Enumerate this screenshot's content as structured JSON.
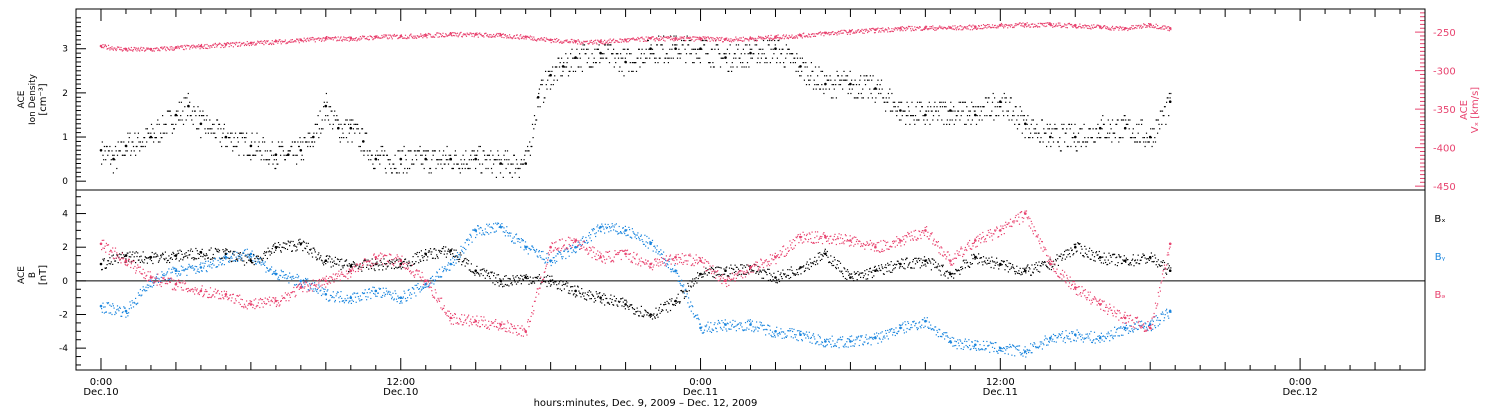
{
  "chart_data": [
    {
      "type": "scatter",
      "ylabel_lines": [
        "ACE",
        "Ion Density",
        "[cm⁻³]"
      ],
      "ylim": [
        -0.2,
        3.9
      ],
      "yticks": [
        0,
        1,
        2,
        3
      ],
      "right_axis": {
        "label_lines": [
          "ACE",
          "Vₓ [km/s]"
        ],
        "ylim": [
          -455,
          -220
        ],
        "ticks": [
          -450,
          -400,
          -350,
          -300,
          -250
        ],
        "color": "#e8436f"
      },
      "series": [
        {
          "color": "#000000",
          "x": [
            0,
            0.5,
            1,
            2,
            3,
            3.5,
            4,
            5,
            6,
            7,
            7.5,
            8,
            8.5,
            9,
            9.5,
            10,
            10.5,
            11,
            12,
            13,
            14,
            15,
            16,
            17,
            17.5,
            18,
            18.5,
            19,
            20,
            21,
            22,
            23,
            24,
            25,
            26,
            27,
            28,
            29,
            30,
            31,
            32,
            33,
            34,
            35,
            36,
            37,
            38,
            39,
            40,
            41,
            42,
            42.8
          ],
          "y": [
            0.7,
            0.5,
            0.8,
            1.0,
            1.5,
            1.7,
            1.3,
            1.0,
            0.8,
            0.6,
            0.6,
            0.7,
            1.0,
            1.7,
            1.2,
            1.2,
            0.9,
            0.5,
            0.5,
            0.5,
            0.5,
            0.5,
            0.4,
            0.4,
            1.9,
            2.4,
            2.6,
            2.8,
            2.9,
            2.7,
            3.0,
            3.0,
            3.0,
            2.8,
            2.9,
            3.0,
            2.6,
            2.2,
            2.2,
            2.1,
            1.6,
            1.5,
            1.6,
            1.5,
            1.8,
            1.3,
            1.0,
            1.0,
            1.2,
            1.2,
            1.0,
            1.8
          ]
        },
        {
          "axis": "right",
          "color": "#e8436f",
          "x": [
            0,
            1,
            2,
            3,
            4,
            5,
            6,
            7,
            8,
            9,
            10,
            11,
            12,
            13,
            14,
            15,
            16,
            17,
            18,
            19,
            20,
            21,
            22,
            23,
            24,
            25,
            26,
            27,
            28,
            29,
            30,
            31,
            32,
            33,
            34,
            35,
            36,
            37,
            38,
            39,
            40,
            41,
            42,
            42.8
          ],
          "y": [
            -268,
            -272,
            -272,
            -270,
            -268,
            -266,
            -264,
            -262,
            -260,
            -258,
            -258,
            -256,
            -255,
            -254,
            -252,
            -253,
            -254,
            -256,
            -260,
            -262,
            -262,
            -260,
            -258,
            -258,
            -258,
            -259,
            -258,
            -256,
            -254,
            -251,
            -249,
            -247,
            -245,
            -244,
            -244,
            -243,
            -241,
            -240,
            -240,
            -241,
            -243,
            -245,
            -240,
            -245
          ]
        }
      ]
    },
    {
      "type": "scatter",
      "ylabel_lines": [
        "ACE",
        "B",
        "[nT]"
      ],
      "ylim": [
        -5.3,
        5.4
      ],
      "yticks": [
        -4,
        -2,
        0,
        2,
        4
      ],
      "series": [
        {
          "name": "Bₓ",
          "color": "#000000",
          "x": [
            0,
            1,
            2,
            3,
            4,
            5,
            6,
            7,
            8,
            9,
            10,
            11,
            12,
            13,
            14,
            15,
            16,
            17,
            18,
            19,
            20,
            21,
            22,
            23,
            24,
            25,
            26,
            27,
            28,
            29,
            30,
            31,
            32,
            33,
            34,
            35,
            36,
            37,
            38,
            39,
            40,
            41,
            42,
            42.8
          ],
          "y": [
            1.0,
            1.5,
            1.4,
            1.5,
            1.7,
            1.6,
            1.2,
            2.0,
            2.2,
            1.2,
            0.9,
            1.0,
            1.0,
            1.6,
            1.8,
            0.6,
            0.0,
            0.2,
            0.0,
            -0.6,
            -1.0,
            -1.4,
            -2.0,
            -1.2,
            0.4,
            0.6,
            0.8,
            0.2,
            0.8,
            1.6,
            0.2,
            0.6,
            1.0,
            1.2,
            0.4,
            1.4,
            1.0,
            0.6,
            1.0,
            2.0,
            1.4,
            1.2,
            1.4,
            0.6
          ]
        },
        {
          "name": "Bᵧ",
          "color": "#1a85de",
          "x": [
            0,
            1,
            2,
            3,
            4,
            5,
            6,
            7,
            8,
            9,
            10,
            11,
            12,
            13,
            14,
            15,
            16,
            17,
            18,
            19,
            20,
            21,
            22,
            23,
            24,
            25,
            26,
            27,
            28,
            29,
            30,
            31,
            32,
            33,
            34,
            35,
            36,
            37,
            38,
            39,
            40,
            41,
            42,
            42.8
          ],
          "y": [
            -1.5,
            -1.8,
            0.0,
            0.6,
            0.8,
            1.4,
            1.6,
            0.4,
            0.0,
            -0.8,
            -1.0,
            -0.6,
            -1.0,
            -0.2,
            1.0,
            3.0,
            3.2,
            2.0,
            1.2,
            2.0,
            3.2,
            3.0,
            2.2,
            0.6,
            -2.8,
            -2.6,
            -2.6,
            -3.0,
            -3.2,
            -3.6,
            -3.6,
            -3.4,
            -2.8,
            -2.4,
            -3.6,
            -3.8,
            -4.0,
            -4.2,
            -3.4,
            -3.2,
            -3.4,
            -2.8,
            -2.6,
            -1.8
          ]
        },
        {
          "name": "Bₔ",
          "color": "#e8436f",
          "x": [
            0,
            1,
            2,
            3,
            4,
            5,
            6,
            7,
            8,
            9,
            10,
            11,
            12,
            13,
            14,
            15,
            16,
            17,
            18,
            19,
            20,
            21,
            22,
            23,
            24,
            25,
            26,
            27,
            28,
            29,
            30,
            31,
            32,
            33,
            34,
            35,
            36,
            37,
            38,
            39,
            40,
            41,
            42,
            42.8
          ],
          "y": [
            2.2,
            1.2,
            0.2,
            -0.2,
            -0.6,
            -0.8,
            -1.4,
            -1.2,
            -0.4,
            0.0,
            0.6,
            1.4,
            1.2,
            0.0,
            -2.2,
            -2.4,
            -2.6,
            -3.0,
            2.0,
            2.4,
            1.4,
            1.6,
            1.0,
            1.4,
            1.2,
            0.0,
            0.8,
            1.4,
            2.6,
            2.6,
            2.4,
            2.0,
            2.4,
            3.0,
            1.2,
            2.4,
            3.0,
            4.0,
            1.0,
            -0.4,
            -1.4,
            -2.2,
            -2.8,
            2.2
          ]
        }
      ]
    }
  ],
  "x_axis": {
    "xlim": [
      -1,
      53
    ],
    "ticks": [
      {
        "x": 0,
        "label": "0:00",
        "sublabel": "Dec.10"
      },
      {
        "x": 12,
        "label": "12:00",
        "sublabel": "Dec.10"
      },
      {
        "x": 24,
        "label": "0:00",
        "sublabel": "Dec.11"
      },
      {
        "x": 36,
        "label": "12:00",
        "sublabel": "Dec.11"
      },
      {
        "x": 48,
        "label": "0:00",
        "sublabel": "Dec.12"
      }
    ],
    "xlabel": "hours:minutes, Dec. 9, 2009 – Dec. 12, 2009"
  }
}
